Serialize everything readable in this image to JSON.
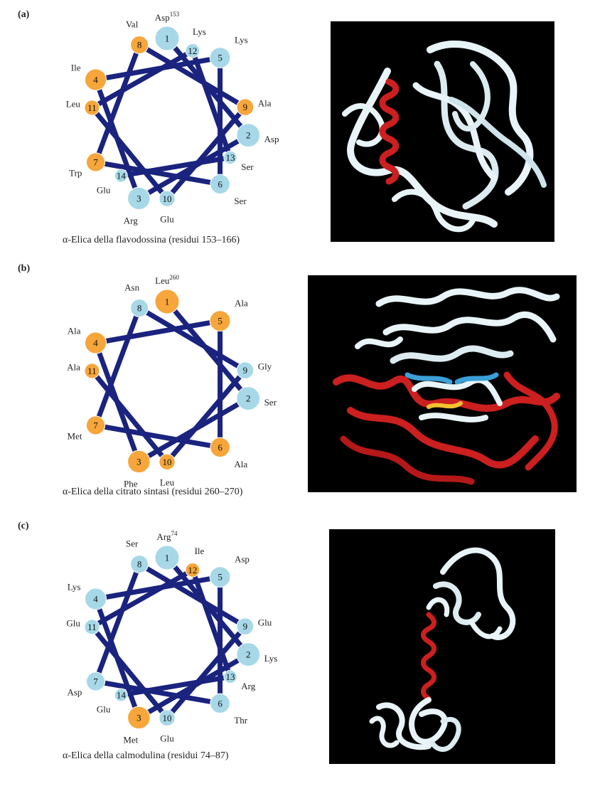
{
  "colors": {
    "hydrophobic": "#f6a63a",
    "hydrophilic": "#a6d8e8",
    "spoke": "#1a237e",
    "ribbon_white": "#e8f4f8",
    "ribbon_red": "#cc1f1f",
    "ribbon_blue": "#3aa0d8",
    "ribbon_yellow": "#f2c230"
  },
  "panels": [
    {
      "label": "(a)",
      "caption": "α-Elica della flavodossina (residui 153–166)",
      "start_superscript": "153",
      "residues": [
        {
          "num": "1",
          "name": "Asp",
          "type": "hydrophilic"
        },
        {
          "num": "2",
          "name": "Asp",
          "type": "hydrophilic"
        },
        {
          "num": "3",
          "name": "Arg",
          "type": "hydrophilic"
        },
        {
          "num": "4",
          "name": "Ile",
          "type": "hydrophobic"
        },
        {
          "num": "5",
          "name": "Lys",
          "type": "hydrophilic"
        },
        {
          "num": "6",
          "name": "Ser",
          "type": "hydrophilic"
        },
        {
          "num": "7",
          "name": "Trp",
          "type": "hydrophobic"
        },
        {
          "num": "8",
          "name": "Val",
          "type": "hydrophobic"
        },
        {
          "num": "9",
          "name": "Ala",
          "type": "hydrophobic"
        },
        {
          "num": "10",
          "name": "Glu",
          "type": "hydrophilic"
        },
        {
          "num": "11",
          "name": "Leu",
          "type": "hydrophobic"
        },
        {
          "num": "12",
          "name": "Lys",
          "type": "hydrophilic"
        },
        {
          "num": "13",
          "name": "Ser",
          "type": "hydrophilic"
        },
        {
          "num": "14",
          "name": "Glu",
          "type": "hydrophilic"
        }
      ],
      "structure": "flavodoxin"
    },
    {
      "label": "(b)",
      "caption": "α-Elica della citrato sintasi (residui 260–270)",
      "start_superscript": "260",
      "residues": [
        {
          "num": "1",
          "name": "Leu",
          "type": "hydrophobic"
        },
        {
          "num": "2",
          "name": "Ser",
          "type": "hydrophilic"
        },
        {
          "num": "3",
          "name": "Phe",
          "type": "hydrophobic"
        },
        {
          "num": "4",
          "name": "Ala",
          "type": "hydrophobic"
        },
        {
          "num": "5",
          "name": "Ala",
          "type": "hydrophobic"
        },
        {
          "num": "6",
          "name": "Ala",
          "type": "hydrophobic"
        },
        {
          "num": "7",
          "name": "Met",
          "type": "hydrophobic"
        },
        {
          "num": "8",
          "name": "Asn",
          "type": "hydrophilic"
        },
        {
          "num": "9",
          "name": "Gly",
          "type": "hydrophilic"
        },
        {
          "num": "10",
          "name": "Leu",
          "type": "hydrophobic"
        },
        {
          "num": "11",
          "name": "Ala",
          "type": "hydrophobic"
        }
      ],
      "structure": "citrate"
    },
    {
      "label": "(c)",
      "caption": "α-Elica della calmodulina (residui 74–87)",
      "start_superscript": "74",
      "residues": [
        {
          "num": "1",
          "name": "Arg",
          "type": "hydrophilic"
        },
        {
          "num": "2",
          "name": "Lys",
          "type": "hydrophilic"
        },
        {
          "num": "3",
          "name": "Met",
          "type": "hydrophobic"
        },
        {
          "num": "4",
          "name": "Lys",
          "type": "hydrophilic"
        },
        {
          "num": "5",
          "name": "Asp",
          "type": "hydrophilic"
        },
        {
          "num": "6",
          "name": "Thr",
          "type": "hydrophilic"
        },
        {
          "num": "7",
          "name": "Asp",
          "type": "hydrophilic"
        },
        {
          "num": "8",
          "name": "Ser",
          "type": "hydrophilic"
        },
        {
          "num": "9",
          "name": "Glu",
          "type": "hydrophilic"
        },
        {
          "num": "10",
          "name": "Glu",
          "type": "hydrophilic"
        },
        {
          "num": "11",
          "name": "Glu",
          "type": "hydrophilic"
        },
        {
          "num": "12",
          "name": "Ile",
          "type": "hydrophobic"
        },
        {
          "num": "13",
          "name": "Arg",
          "type": "hydrophilic"
        },
        {
          "num": "14",
          "name": "Glu",
          "type": "hydrophilic"
        }
      ],
      "structure": "calmodulin"
    }
  ]
}
